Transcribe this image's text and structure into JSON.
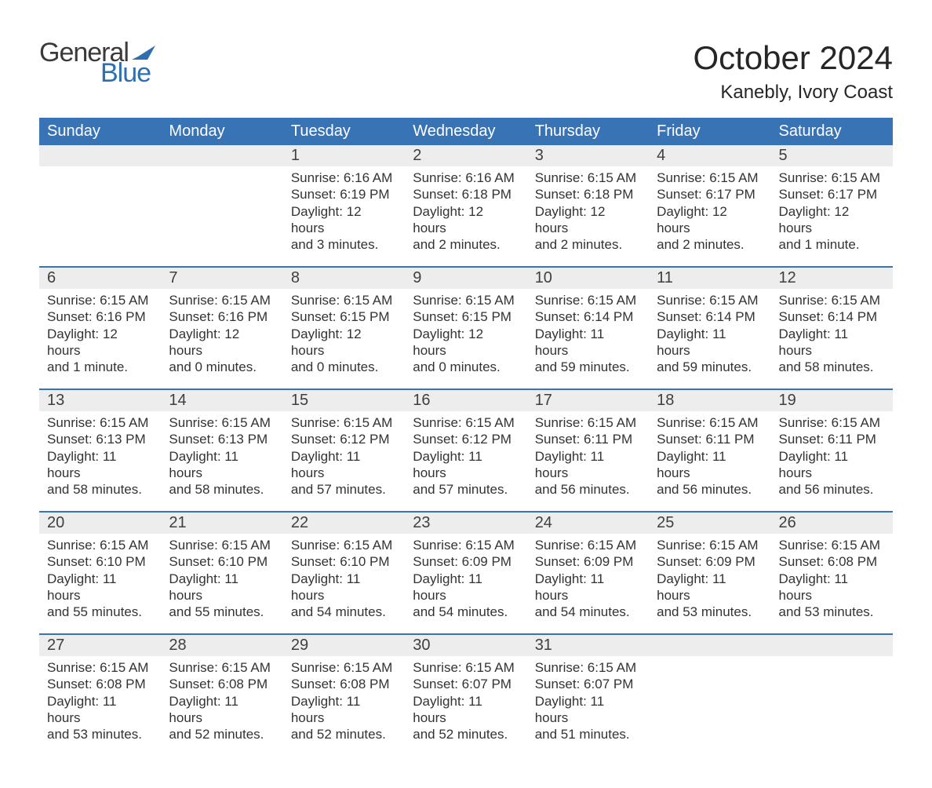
{
  "branding": {
    "logo_word1": "General",
    "logo_word2": "Blue",
    "logo_word1_color": "#3a3a3a",
    "logo_word2_color": "#2f6fb0",
    "flag_color": "#2f6fb0"
  },
  "header": {
    "month_title": "October 2024",
    "location": "Kanebly, Ivory Coast"
  },
  "style": {
    "header_bg": "#3873b6",
    "header_text": "#ffffff",
    "daynum_bg": "#ededed",
    "row_divider": "#3873b6",
    "body_text": "#333333",
    "title_color": "#262626",
    "page_bg": "#ffffff",
    "th_fontsize": 20,
    "daynum_fontsize": 20,
    "body_fontsize": 17,
    "title_fontsize": 42,
    "location_fontsize": 24
  },
  "weekdays": [
    "Sunday",
    "Monday",
    "Tuesday",
    "Wednesday",
    "Thursday",
    "Friday",
    "Saturday"
  ],
  "weeks": [
    [
      null,
      null,
      {
        "n": "1",
        "sunrise": "Sunrise: 6:16 AM",
        "sunset": "Sunset: 6:19 PM",
        "day1": "Daylight: 12 hours",
        "day2": "and 3 minutes."
      },
      {
        "n": "2",
        "sunrise": "Sunrise: 6:16 AM",
        "sunset": "Sunset: 6:18 PM",
        "day1": "Daylight: 12 hours",
        "day2": "and 2 minutes."
      },
      {
        "n": "3",
        "sunrise": "Sunrise: 6:15 AM",
        "sunset": "Sunset: 6:18 PM",
        "day1": "Daylight: 12 hours",
        "day2": "and 2 minutes."
      },
      {
        "n": "4",
        "sunrise": "Sunrise: 6:15 AM",
        "sunset": "Sunset: 6:17 PM",
        "day1": "Daylight: 12 hours",
        "day2": "and 2 minutes."
      },
      {
        "n": "5",
        "sunrise": "Sunrise: 6:15 AM",
        "sunset": "Sunset: 6:17 PM",
        "day1": "Daylight: 12 hours",
        "day2": "and 1 minute."
      }
    ],
    [
      {
        "n": "6",
        "sunrise": "Sunrise: 6:15 AM",
        "sunset": "Sunset: 6:16 PM",
        "day1": "Daylight: 12 hours",
        "day2": "and 1 minute."
      },
      {
        "n": "7",
        "sunrise": "Sunrise: 6:15 AM",
        "sunset": "Sunset: 6:16 PM",
        "day1": "Daylight: 12 hours",
        "day2": "and 0 minutes."
      },
      {
        "n": "8",
        "sunrise": "Sunrise: 6:15 AM",
        "sunset": "Sunset: 6:15 PM",
        "day1": "Daylight: 12 hours",
        "day2": "and 0 minutes."
      },
      {
        "n": "9",
        "sunrise": "Sunrise: 6:15 AM",
        "sunset": "Sunset: 6:15 PM",
        "day1": "Daylight: 12 hours",
        "day2": "and 0 minutes."
      },
      {
        "n": "10",
        "sunrise": "Sunrise: 6:15 AM",
        "sunset": "Sunset: 6:14 PM",
        "day1": "Daylight: 11 hours",
        "day2": "and 59 minutes."
      },
      {
        "n": "11",
        "sunrise": "Sunrise: 6:15 AM",
        "sunset": "Sunset: 6:14 PM",
        "day1": "Daylight: 11 hours",
        "day2": "and 59 minutes."
      },
      {
        "n": "12",
        "sunrise": "Sunrise: 6:15 AM",
        "sunset": "Sunset: 6:14 PM",
        "day1": "Daylight: 11 hours",
        "day2": "and 58 minutes."
      }
    ],
    [
      {
        "n": "13",
        "sunrise": "Sunrise: 6:15 AM",
        "sunset": "Sunset: 6:13 PM",
        "day1": "Daylight: 11 hours",
        "day2": "and 58 minutes."
      },
      {
        "n": "14",
        "sunrise": "Sunrise: 6:15 AM",
        "sunset": "Sunset: 6:13 PM",
        "day1": "Daylight: 11 hours",
        "day2": "and 58 minutes."
      },
      {
        "n": "15",
        "sunrise": "Sunrise: 6:15 AM",
        "sunset": "Sunset: 6:12 PM",
        "day1": "Daylight: 11 hours",
        "day2": "and 57 minutes."
      },
      {
        "n": "16",
        "sunrise": "Sunrise: 6:15 AM",
        "sunset": "Sunset: 6:12 PM",
        "day1": "Daylight: 11 hours",
        "day2": "and 57 minutes."
      },
      {
        "n": "17",
        "sunrise": "Sunrise: 6:15 AM",
        "sunset": "Sunset: 6:11 PM",
        "day1": "Daylight: 11 hours",
        "day2": "and 56 minutes."
      },
      {
        "n": "18",
        "sunrise": "Sunrise: 6:15 AM",
        "sunset": "Sunset: 6:11 PM",
        "day1": "Daylight: 11 hours",
        "day2": "and 56 minutes."
      },
      {
        "n": "19",
        "sunrise": "Sunrise: 6:15 AM",
        "sunset": "Sunset: 6:11 PM",
        "day1": "Daylight: 11 hours",
        "day2": "and 56 minutes."
      }
    ],
    [
      {
        "n": "20",
        "sunrise": "Sunrise: 6:15 AM",
        "sunset": "Sunset: 6:10 PM",
        "day1": "Daylight: 11 hours",
        "day2": "and 55 minutes."
      },
      {
        "n": "21",
        "sunrise": "Sunrise: 6:15 AM",
        "sunset": "Sunset: 6:10 PM",
        "day1": "Daylight: 11 hours",
        "day2": "and 55 minutes."
      },
      {
        "n": "22",
        "sunrise": "Sunrise: 6:15 AM",
        "sunset": "Sunset: 6:10 PM",
        "day1": "Daylight: 11 hours",
        "day2": "and 54 minutes."
      },
      {
        "n": "23",
        "sunrise": "Sunrise: 6:15 AM",
        "sunset": "Sunset: 6:09 PM",
        "day1": "Daylight: 11 hours",
        "day2": "and 54 minutes."
      },
      {
        "n": "24",
        "sunrise": "Sunrise: 6:15 AM",
        "sunset": "Sunset: 6:09 PM",
        "day1": "Daylight: 11 hours",
        "day2": "and 54 minutes."
      },
      {
        "n": "25",
        "sunrise": "Sunrise: 6:15 AM",
        "sunset": "Sunset: 6:09 PM",
        "day1": "Daylight: 11 hours",
        "day2": "and 53 minutes."
      },
      {
        "n": "26",
        "sunrise": "Sunrise: 6:15 AM",
        "sunset": "Sunset: 6:08 PM",
        "day1": "Daylight: 11 hours",
        "day2": "and 53 minutes."
      }
    ],
    [
      {
        "n": "27",
        "sunrise": "Sunrise: 6:15 AM",
        "sunset": "Sunset: 6:08 PM",
        "day1": "Daylight: 11 hours",
        "day2": "and 53 minutes."
      },
      {
        "n": "28",
        "sunrise": "Sunrise: 6:15 AM",
        "sunset": "Sunset: 6:08 PM",
        "day1": "Daylight: 11 hours",
        "day2": "and 52 minutes."
      },
      {
        "n": "29",
        "sunrise": "Sunrise: 6:15 AM",
        "sunset": "Sunset: 6:08 PM",
        "day1": "Daylight: 11 hours",
        "day2": "and 52 minutes."
      },
      {
        "n": "30",
        "sunrise": "Sunrise: 6:15 AM",
        "sunset": "Sunset: 6:07 PM",
        "day1": "Daylight: 11 hours",
        "day2": "and 52 minutes."
      },
      {
        "n": "31",
        "sunrise": "Sunrise: 6:15 AM",
        "sunset": "Sunset: 6:07 PM",
        "day1": "Daylight: 11 hours",
        "day2": "and 51 minutes."
      },
      null,
      null
    ]
  ]
}
